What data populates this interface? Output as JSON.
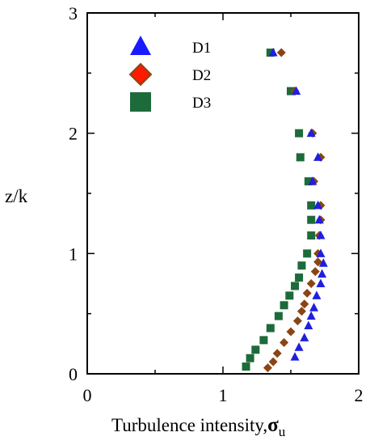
{
  "chart_data": {
    "type": "scatter",
    "xlabel": "Turbulence intensity,",
    "xlabel_symbol": "σ",
    "xlabel_sub": "u",
    "ylabel": "z/k",
    "xlim": [
      0,
      2
    ],
    "ylim": [
      0,
      3
    ],
    "xticks": [
      0,
      1,
      2
    ],
    "yticks": [
      0,
      1,
      2,
      3
    ],
    "grid": false,
    "legend_position": "top-left",
    "series": [
      {
        "name": "D1",
        "marker": "triangle",
        "color": "#1f1fe0",
        "points": [
          [
            1.37,
            2.67
          ],
          [
            1.54,
            2.35
          ],
          [
            1.65,
            2.0
          ],
          [
            1.7,
            1.8
          ],
          [
            1.66,
            1.6
          ],
          [
            1.7,
            1.4
          ],
          [
            1.71,
            1.28
          ],
          [
            1.72,
            1.15
          ],
          [
            1.72,
            1.0
          ],
          [
            1.74,
            0.92
          ],
          [
            1.73,
            0.83
          ],
          [
            1.72,
            0.75
          ],
          [
            1.69,
            0.65
          ],
          [
            1.67,
            0.55
          ],
          [
            1.65,
            0.48
          ],
          [
            1.63,
            0.4
          ],
          [
            1.6,
            0.3
          ],
          [
            1.56,
            0.22
          ],
          [
            1.53,
            0.14
          ]
        ]
      },
      {
        "name": "D2",
        "marker": "diamond",
        "color": "#8b4513",
        "points": [
          [
            1.43,
            2.67
          ],
          [
            1.53,
            2.35
          ],
          [
            1.66,
            2.0
          ],
          [
            1.72,
            1.8
          ],
          [
            1.67,
            1.6
          ],
          [
            1.72,
            1.4
          ],
          [
            1.72,
            1.28
          ],
          [
            1.71,
            1.15
          ],
          [
            1.7,
            1.0
          ],
          [
            1.7,
            0.93
          ],
          [
            1.68,
            0.85
          ],
          [
            1.65,
            0.75
          ],
          [
            1.62,
            0.67
          ],
          [
            1.6,
            0.58
          ],
          [
            1.58,
            0.52
          ],
          [
            1.55,
            0.44
          ],
          [
            1.5,
            0.35
          ],
          [
            1.45,
            0.26
          ],
          [
            1.4,
            0.17
          ],
          [
            1.37,
            0.1
          ],
          [
            1.33,
            0.05
          ]
        ]
      },
      {
        "name": "D3",
        "marker": "square",
        "color": "#1d6b3a",
        "points": [
          [
            1.35,
            2.67
          ],
          [
            1.5,
            2.35
          ],
          [
            1.56,
            2.0
          ],
          [
            1.57,
            1.8
          ],
          [
            1.63,
            1.6
          ],
          [
            1.65,
            1.4
          ],
          [
            1.65,
            1.28
          ],
          [
            1.65,
            1.15
          ],
          [
            1.62,
            1.0
          ],
          [
            1.58,
            0.9
          ],
          [
            1.56,
            0.8
          ],
          [
            1.53,
            0.73
          ],
          [
            1.49,
            0.65
          ],
          [
            1.45,
            0.57
          ],
          [
            1.41,
            0.48
          ],
          [
            1.35,
            0.38
          ],
          [
            1.3,
            0.28
          ],
          [
            1.24,
            0.2
          ],
          [
            1.2,
            0.13
          ],
          [
            1.17,
            0.06
          ]
        ]
      }
    ]
  }
}
